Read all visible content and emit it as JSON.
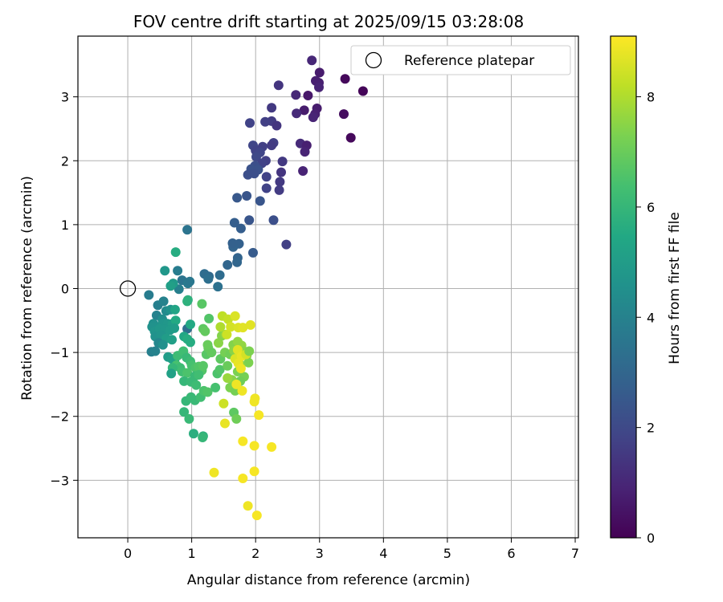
{
  "chart_data": {
    "type": "scatter",
    "title": "FOV centre drift starting at 2025/09/15 03:28:08",
    "xlabel": "Angular distance from reference (arcmin)",
    "ylabel": "Rotation from reference (arcmin)",
    "xlim": [
      -0.78,
      7.05
    ],
    "ylim": [
      -3.9,
      3.95
    ],
    "xticks": [
      0,
      1,
      2,
      3,
      4,
      5,
      6,
      7
    ],
    "yticks": [
      -3,
      -2,
      -1,
      0,
      1,
      2,
      3
    ],
    "grid": true,
    "legend": {
      "position": "top-right",
      "entries": [
        "Reference platepar"
      ]
    },
    "reference_point": {
      "x": 0,
      "y": 0
    },
    "colorbar": {
      "label": "Hours from first FF file",
      "range": [
        0,
        9.1
      ],
      "ticks": [
        0,
        2,
        4,
        6,
        8
      ],
      "colormap": "viridis"
    },
    "points": [
      [
        3.68,
        3.09,
        0.1
      ],
      [
        3.49,
        2.36,
        0.2
      ],
      [
        3.38,
        2.73,
        0.3
      ],
      [
        3.4,
        3.28,
        0.2
      ],
      [
        3.0,
        3.38,
        0.7
      ],
      [
        2.99,
        3.22,
        0.8
      ],
      [
        2.94,
        3.25,
        0.8
      ],
      [
        2.99,
        3.15,
        0.9
      ],
      [
        2.88,
        3.57,
        1.0
      ],
      [
        2.96,
        2.82,
        0.7
      ],
      [
        2.93,
        2.73,
        0.8
      ],
      [
        2.9,
        2.68,
        0.9
      ],
      [
        2.82,
        3.02,
        0.6
      ],
      [
        2.76,
        2.79,
        0.7
      ],
      [
        2.63,
        3.03,
        1.0
      ],
      [
        2.64,
        2.74,
        1.1
      ],
      [
        2.7,
        2.27,
        1.1
      ],
      [
        2.8,
        2.24,
        0.8
      ],
      [
        2.77,
        2.14,
        0.9
      ],
      [
        2.74,
        1.84,
        0.9
      ],
      [
        2.36,
        3.18,
        1.4
      ],
      [
        2.25,
        2.83,
        1.5
      ],
      [
        2.25,
        2.62,
        1.6
      ],
      [
        2.33,
        2.55,
        1.4
      ],
      [
        2.15,
        2.61,
        1.7
      ],
      [
        1.91,
        2.59,
        1.8
      ],
      [
        2.28,
        2.28,
        1.7
      ],
      [
        2.25,
        2.24,
        1.6
      ],
      [
        1.96,
        2.24,
        1.9
      ],
      [
        2.0,
        2.16,
        1.8
      ],
      [
        2.11,
        2.22,
        1.7
      ],
      [
        2.07,
        2.13,
        1.9
      ],
      [
        2.01,
        2.06,
        2.0
      ],
      [
        2.42,
        1.99,
        1.5
      ],
      [
        2.16,
        2.0,
        1.7
      ],
      [
        2.1,
        1.96,
        1.8
      ],
      [
        1.99,
        1.92,
        2.2
      ],
      [
        1.93,
        1.87,
        2.3
      ],
      [
        2.04,
        1.86,
        2.3
      ],
      [
        1.88,
        1.78,
        2.2
      ],
      [
        1.98,
        1.8,
        2.2
      ],
      [
        2.17,
        1.75,
        1.8
      ],
      [
        2.4,
        1.82,
        1.4
      ],
      [
        2.38,
        1.67,
        1.5
      ],
      [
        2.37,
        1.54,
        1.6
      ],
      [
        2.17,
        1.57,
        1.8
      ],
      [
        1.71,
        1.42,
        2.5
      ],
      [
        1.86,
        1.45,
        2.4
      ],
      [
        2.07,
        1.37,
        2.4
      ],
      [
        1.9,
        1.07,
        2.4
      ],
      [
        2.28,
        1.07,
        2.2
      ],
      [
        2.48,
        0.69,
        1.7
      ],
      [
        1.67,
        1.03,
        2.7
      ],
      [
        1.77,
        0.94,
        2.7
      ],
      [
        1.74,
        0.7,
        2.8
      ],
      [
        1.65,
        0.65,
        2.9
      ],
      [
        1.64,
        0.71,
        2.8
      ],
      [
        1.56,
        0.37,
        3.0
      ],
      [
        1.72,
        0.48,
        2.9
      ],
      [
        1.71,
        0.41,
        3.0
      ],
      [
        1.96,
        0.56,
        2.6
      ],
      [
        1.44,
        0.21,
        3.2
      ],
      [
        1.27,
        0.19,
        3.1
      ],
      [
        1.2,
        0.23,
        3.2
      ],
      [
        1.26,
        0.15,
        3.3
      ],
      [
        1.41,
        0.03,
        3.4
      ],
      [
        0.93,
        0.92,
        3.5
      ],
      [
        0.78,
        0.28,
        3.8
      ],
      [
        0.85,
        0.13,
        3.5
      ],
      [
        0.94,
        0.08,
        3.7
      ],
      [
        0.97,
        0.11,
        3.6
      ],
      [
        0.8,
        -0.01,
        3.9
      ],
      [
        0.58,
        0.28,
        4.8
      ],
      [
        0.75,
        0.57,
        5.6
      ],
      [
        0.71,
        0.08,
        4.9
      ],
      [
        0.67,
        0.04,
        5.1
      ],
      [
        0.93,
        -0.2,
        5.8
      ],
      [
        0.94,
        -0.18,
        5.8
      ],
      [
        0.33,
        -0.1,
        3.8
      ],
      [
        0.47,
        -0.26,
        3.9
      ],
      [
        0.56,
        -0.2,
        4.0
      ],
      [
        0.6,
        -0.35,
        4.3
      ],
      [
        0.67,
        -0.33,
        4.6
      ],
      [
        0.74,
        -0.33,
        5.3
      ],
      [
        0.45,
        -0.42,
        4.0
      ],
      [
        0.54,
        -0.48,
        4.4
      ],
      [
        0.4,
        -0.55,
        4.5
      ],
      [
        0.47,
        -0.6,
        4.6
      ],
      [
        0.55,
        -0.55,
        4.7
      ],
      [
        0.62,
        -0.55,
        4.8
      ],
      [
        0.7,
        -0.55,
        5.0
      ],
      [
        0.75,
        -0.5,
        5.5
      ],
      [
        0.38,
        -0.6,
        4.6
      ],
      [
        0.42,
        -0.67,
        4.7
      ],
      [
        0.5,
        -0.63,
        4.8
      ],
      [
        0.58,
        -0.64,
        4.8
      ],
      [
        0.66,
        -0.65,
        4.9
      ],
      [
        0.73,
        -0.62,
        5.0
      ],
      [
        0.43,
        -0.75,
        4.6
      ],
      [
        0.52,
        -0.73,
        4.7
      ],
      [
        0.6,
        -0.78,
        5.0
      ],
      [
        0.69,
        -0.8,
        5.1
      ],
      [
        0.48,
        -0.85,
        4.2
      ],
      [
        0.55,
        -0.88,
        4.5
      ],
      [
        0.37,
        -0.99,
        3.9
      ],
      [
        0.43,
        -0.98,
        4.0
      ],
      [
        0.93,
        -0.63,
        3.3
      ],
      [
        0.88,
        -0.75,
        5.4
      ],
      [
        0.93,
        -0.79,
        5.6
      ],
      [
        0.98,
        -0.84,
        5.6
      ],
      [
        0.63,
        -1.07,
        5.0
      ],
      [
        0.69,
        -1.1,
        5.1
      ],
      [
        0.73,
        -1.13,
        5.2
      ],
      [
        0.78,
        -1.05,
        6.2
      ],
      [
        0.87,
        -0.98,
        6.3
      ],
      [
        0.92,
        -1.08,
        6.1
      ],
      [
        0.98,
        -1.14,
        6.2
      ],
      [
        0.76,
        -1.2,
        6.4
      ],
      [
        0.82,
        -1.24,
        6.2
      ],
      [
        0.7,
        -1.24,
        6.0
      ],
      [
        0.68,
        -1.33,
        5.2
      ],
      [
        0.85,
        -1.3,
        6.3
      ],
      [
        0.93,
        -1.32,
        6.5
      ],
      [
        1.0,
        -1.2,
        6.4
      ],
      [
        1.06,
        -1.24,
        6.5
      ],
      [
        1.11,
        -1.22,
        6.6
      ],
      [
        1.16,
        -1.28,
        6.6
      ],
      [
        1.18,
        -1.21,
        6.7
      ],
      [
        1.23,
        -1.03,
        6.7
      ],
      [
        1.26,
        -0.93,
        6.9
      ],
      [
        1.31,
        -1.0,
        6.9
      ],
      [
        1.27,
        -0.47,
        6.6
      ],
      [
        1.18,
        -0.63,
        6.8
      ],
      [
        1.16,
        -0.24,
        6.7
      ],
      [
        1.21,
        -0.67,
        6.9
      ],
      [
        1.25,
        -0.88,
        7.0
      ],
      [
        0.88,
        -1.45,
        6.0
      ],
      [
        0.99,
        -1.46,
        6.1
      ],
      [
        1.07,
        -1.51,
        6.2
      ],
      [
        1.05,
        -1.37,
        6.1
      ],
      [
        1.11,
        -1.35,
        6.3
      ],
      [
        0.91,
        -1.76,
        6.0
      ],
      [
        0.99,
        -1.7,
        6.1
      ],
      [
        1.05,
        -1.75,
        6.1
      ],
      [
        1.14,
        -1.7,
        6.3
      ],
      [
        1.19,
        -1.6,
        6.5
      ],
      [
        1.25,
        -1.62,
        6.6
      ],
      [
        0.88,
        -1.93,
        6.0
      ],
      [
        0.96,
        -2.04,
        6.1
      ],
      [
        1.03,
        -2.27,
        5.7
      ],
      [
        1.18,
        -2.31,
        5.8
      ],
      [
        1.17,
        -2.33,
        6.0
      ],
      [
        1.37,
        -1.55,
        6.4
      ],
      [
        1.4,
        -1.33,
        6.5
      ],
      [
        1.44,
        -1.27,
        6.6
      ],
      [
        1.45,
        -1.1,
        6.8
      ],
      [
        1.42,
        -0.85,
        7.5
      ],
      [
        1.47,
        -0.74,
        7.4
      ],
      [
        1.53,
        -0.72,
        7.6
      ],
      [
        1.52,
        -1.0,
        7.2
      ],
      [
        1.56,
        -1.21,
        7.0
      ],
      [
        1.6,
        -1.03,
        7.1
      ],
      [
        1.65,
        -0.88,
        7.4
      ],
      [
        1.66,
        -0.97,
        7.5
      ],
      [
        1.72,
        -0.83,
        7.6
      ],
      [
        1.78,
        -0.89,
        7.6
      ],
      [
        1.82,
        -0.98,
        7.5
      ],
      [
        1.86,
        -1.05,
        7.4
      ],
      [
        1.89,
        -1.16,
        7.3
      ],
      [
        1.77,
        -1.2,
        7.4
      ],
      [
        1.72,
        -1.3,
        7.3
      ],
      [
        1.82,
        -1.38,
        7.2
      ],
      [
        1.76,
        -1.45,
        7.1
      ],
      [
        1.63,
        -1.43,
        7.5
      ],
      [
        1.56,
        -1.4,
        7.7
      ],
      [
        1.6,
        -1.55,
        7.3
      ],
      [
        1.68,
        -1.6,
        7.2
      ],
      [
        1.5,
        -1.8,
        8.4
      ],
      [
        1.45,
        -0.6,
        8.0
      ],
      [
        1.48,
        -0.43,
        8.2
      ],
      [
        1.57,
        -0.48,
        8.3
      ],
      [
        1.55,
        -0.72,
        8.4
      ],
      [
        1.61,
        -0.6,
        8.5
      ],
      [
        1.68,
        -0.43,
        8.6
      ],
      [
        1.73,
        -0.61,
        8.6
      ],
      [
        1.8,
        -0.61,
        8.7
      ],
      [
        1.92,
        -0.57,
        8.7
      ],
      [
        1.68,
        -1.1,
        8.6
      ],
      [
        1.72,
        -0.96,
        8.7
      ],
      [
        1.78,
        -1.06,
        8.8
      ],
      [
        1.73,
        -1.17,
        8.8
      ],
      [
        1.77,
        -1.25,
        8.9
      ],
      [
        1.7,
        -1.5,
        8.9
      ],
      [
        1.79,
        -1.6,
        8.9
      ],
      [
        1.52,
        -2.11,
        8.8
      ],
      [
        1.66,
        -1.94,
        6.8
      ],
      [
        1.7,
        -2.04,
        7.1
      ],
      [
        1.99,
        -1.72,
        8.9
      ],
      [
        1.98,
        -1.77,
        8.9
      ],
      [
        2.05,
        -1.98,
        9.0
      ],
      [
        1.8,
        -2.39,
        9.0
      ],
      [
        1.98,
        -2.46,
        9.0
      ],
      [
        2.25,
        -2.48,
        9.0
      ],
      [
        1.35,
        -2.88,
        8.9
      ],
      [
        1.8,
        -2.97,
        9.0
      ],
      [
        1.98,
        -2.86,
        9.0
      ],
      [
        1.88,
        -3.4,
        8.9
      ],
      [
        2.02,
        -3.55,
        9.0
      ],
      [
        1.85,
        -1.03,
        8.5
      ],
      [
        1.9,
        -0.98,
        7.3
      ],
      [
        0.98,
        -0.56,
        5.5
      ]
    ]
  }
}
